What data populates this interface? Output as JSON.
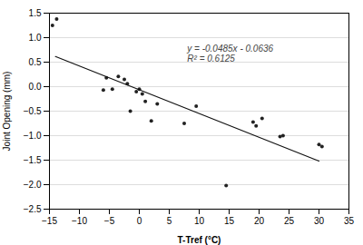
{
  "chart_data": {
    "type": "scatter",
    "xlabel": "T-Tref (°C)",
    "ylabel": "Joint Opening (mm)",
    "series": [
      {
        "type": "scatter",
        "color": "#222222",
        "x": [
          -14.5,
          -13.8,
          -6.0,
          -5.5,
          -4.5,
          -3.5,
          -2.5,
          -2.0,
          -1.5,
          -0.5,
          0.0,
          0.5,
          1.0,
          2.0,
          3.0,
          7.5,
          9.5,
          14.5,
          19.0,
          19.5,
          20.5,
          23.5,
          24.0,
          30.0,
          30.5
        ],
        "values": [
          1.25,
          1.38,
          -0.07,
          0.18,
          -0.05,
          0.21,
          0.15,
          0.06,
          -0.5,
          -0.1,
          -0.05,
          -0.15,
          -0.3,
          -0.7,
          -0.35,
          -0.75,
          -0.4,
          -2.02,
          -0.72,
          -0.8,
          -0.65,
          -1.02,
          -1.0,
          -1.18,
          -1.22
        ]
      },
      {
        "type": "line",
        "color": "#111111",
        "x": [
          -14,
          30
        ],
        "values": [
          0.6154,
          -1.5186
        ]
      }
    ],
    "annotations": [
      {
        "text": "y = -0.0485x - 0.0636",
        "x": 8,
        "y": 0.85,
        "color": "#444444"
      },
      {
        "text": "R² = 0.6125",
        "x": 8,
        "y": 0.65,
        "color": "#444444"
      }
    ],
    "xlim": [
      -15,
      35
    ],
    "ylim": [
      -2.5,
      1.5
    ],
    "xticks": [
      -15,
      -10,
      -5,
      0,
      5,
      10,
      15,
      20,
      25,
      30,
      35
    ],
    "yticks": [
      -2.5,
      {
        "value": -2,
        "label": "−2.0"
      },
      -1.5,
      {
        "value": -1,
        "label": "−1.0"
      },
      -0.5,
      {
        "value": 0,
        "label": "0.0"
      },
      0.5,
      {
        "value": 1,
        "label": "1.0"
      },
      1.5
    ],
    "grid": "y"
  }
}
